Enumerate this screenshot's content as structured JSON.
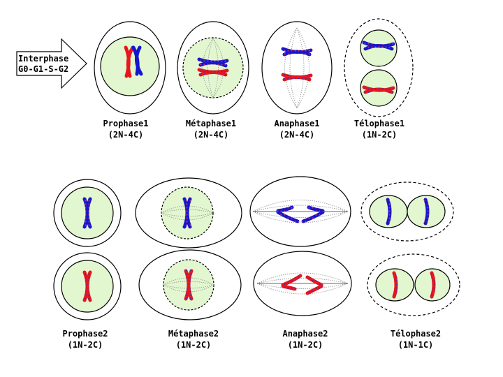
{
  "interphase": {
    "line1": "Interphase",
    "line2": "G0-G1-S-G2"
  },
  "phases": [
    {
      "name": "Prophase1",
      "ploidy": "(2N-4C)"
    },
    {
      "name": "Métaphase1",
      "ploidy": "(2N-4C)"
    },
    {
      "name": "Anaphase1",
      "ploidy": "(2N-4C)"
    },
    {
      "name": "Télophase1",
      "ploidy": "(1N-2C)"
    },
    {
      "name": "Prophase2",
      "ploidy": "(1N-2C)"
    },
    {
      "name": "Métaphase2",
      "ploidy": "(1N-2C)"
    },
    {
      "name": "Anaphase2",
      "ploidy": "(1N-2C)"
    },
    {
      "name": "Télophase2",
      "ploidy": "(1N-1C)"
    }
  ],
  "colors": {
    "nucleus": "#e2f7cf",
    "maternal": "#e8161c",
    "paternal": "#1616cc",
    "dots": "#8a3a9a",
    "spindle": "#9a9a9a"
  }
}
